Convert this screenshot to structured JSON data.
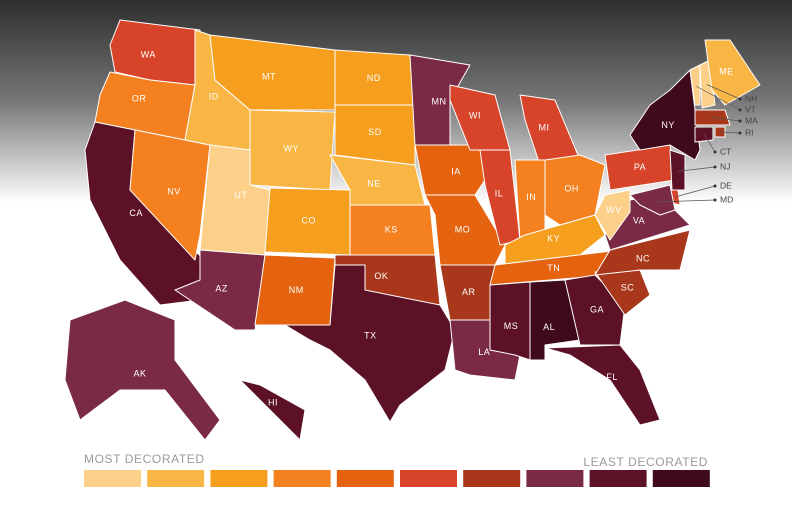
{
  "legend": {
    "most_label": "MOST DECORATED",
    "least_label": "LEAST DECORATED",
    "colors": [
      "#fdd08a",
      "#f9b644",
      "#f69f1f",
      "#f4801f",
      "#e5620f",
      "#d7442a",
      "#a8371b",
      "#7b2a45",
      "#5c1127",
      "#3f0a1b"
    ]
  },
  "states": [
    {
      "label": "WA",
      "level": 5
    },
    {
      "label": "OR",
      "level": 3
    },
    {
      "label": "CA",
      "level": 8
    },
    {
      "label": "NV",
      "level": 3
    },
    {
      "label": "ID",
      "level": 1
    },
    {
      "label": "MT",
      "level": 2
    },
    {
      "label": "WY",
      "level": 1
    },
    {
      "label": "UT",
      "level": 0
    },
    {
      "label": "AZ",
      "level": 7
    },
    {
      "label": "CO",
      "level": 2
    },
    {
      "label": "NM",
      "level": 4
    },
    {
      "label": "ND",
      "level": 2
    },
    {
      "label": "SD",
      "level": 2
    },
    {
      "label": "NE",
      "level": 1
    },
    {
      "label": "KS",
      "level": 3
    },
    {
      "label": "OK",
      "level": 6
    },
    {
      "label": "TX",
      "level": 8
    },
    {
      "label": "MN",
      "level": 7
    },
    {
      "label": "IA",
      "level": 4
    },
    {
      "label": "MO",
      "level": 4
    },
    {
      "label": "AR",
      "level": 6
    },
    {
      "label": "LA",
      "level": 7
    },
    {
      "label": "WI",
      "level": 5
    },
    {
      "label": "IL",
      "level": 5
    },
    {
      "label": "MI",
      "level": 5
    },
    {
      "label": "IN",
      "level": 3
    },
    {
      "label": "OH",
      "level": 3
    },
    {
      "label": "KY",
      "level": 2
    },
    {
      "label": "TN",
      "level": 4
    },
    {
      "label": "MS",
      "level": 8
    },
    {
      "label": "AL",
      "level": 9
    },
    {
      "label": "GA",
      "level": 8
    },
    {
      "label": "FL",
      "level": 8
    },
    {
      "label": "SC",
      "level": 6
    },
    {
      "label": "NC",
      "level": 6
    },
    {
      "label": "VA",
      "level": 7
    },
    {
      "label": "WV",
      "level": 0
    },
    {
      "label": "PA",
      "level": 5
    },
    {
      "label": "NY",
      "level": 9
    },
    {
      "label": "VT",
      "level": 0
    },
    {
      "label": "NH",
      "level": 0
    },
    {
      "label": "ME",
      "level": 1
    },
    {
      "label": "MA",
      "level": 6
    },
    {
      "label": "RI",
      "level": 6
    },
    {
      "label": "CT",
      "level": 8
    },
    {
      "label": "NJ",
      "level": 8
    },
    {
      "label": "DE",
      "level": 5
    },
    {
      "label": "MD",
      "level": 7
    },
    {
      "label": "AK",
      "level": 7
    },
    {
      "label": "HI",
      "level": 8
    }
  ]
}
